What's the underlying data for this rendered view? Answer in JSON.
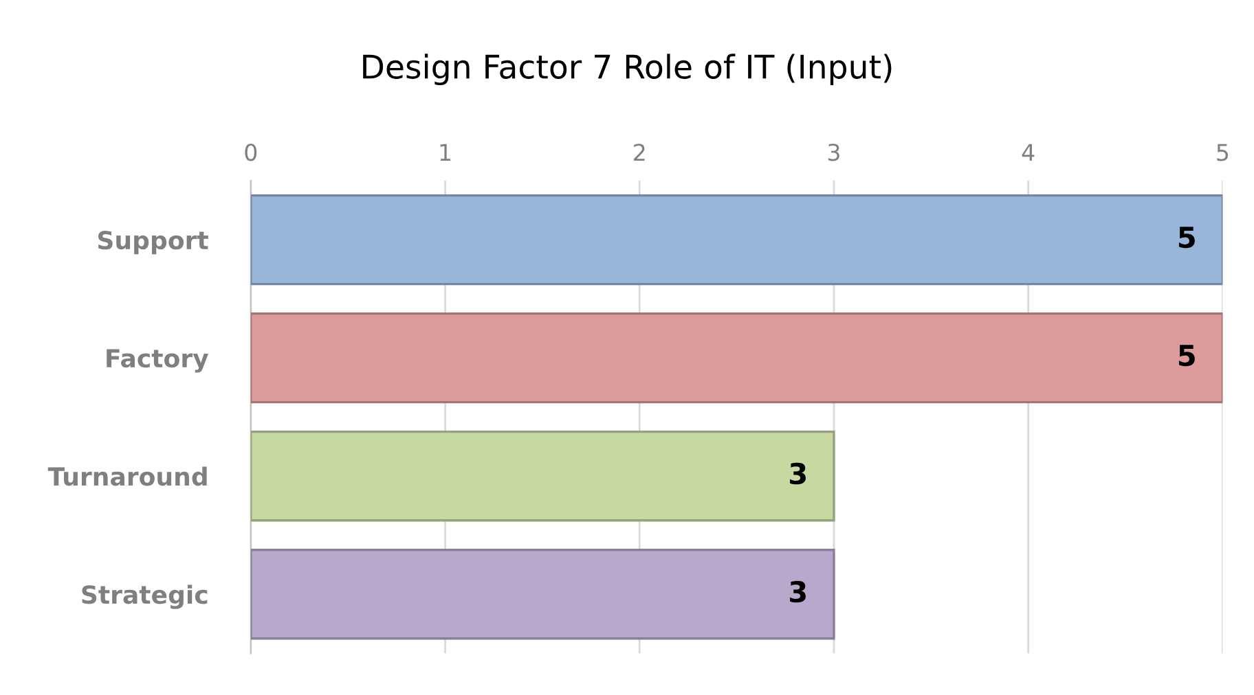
{
  "chart_data": {
    "type": "bar",
    "orientation": "horizontal",
    "title": "Design Factor 7 Role of IT (Input)",
    "categories": [
      "Support",
      "Factory",
      "Turnaround",
      "Strategic"
    ],
    "values": [
      5,
      5,
      3,
      3
    ],
    "colors": [
      "#9ab5da",
      "#dc9c9b",
      "#c6d9a1",
      "#b8a8cc"
    ],
    "xlim": [
      0,
      5
    ],
    "xticks": [
      0,
      1,
      2,
      3,
      4,
      5
    ],
    "grid": "x",
    "data_labels": true,
    "legend": false
  }
}
